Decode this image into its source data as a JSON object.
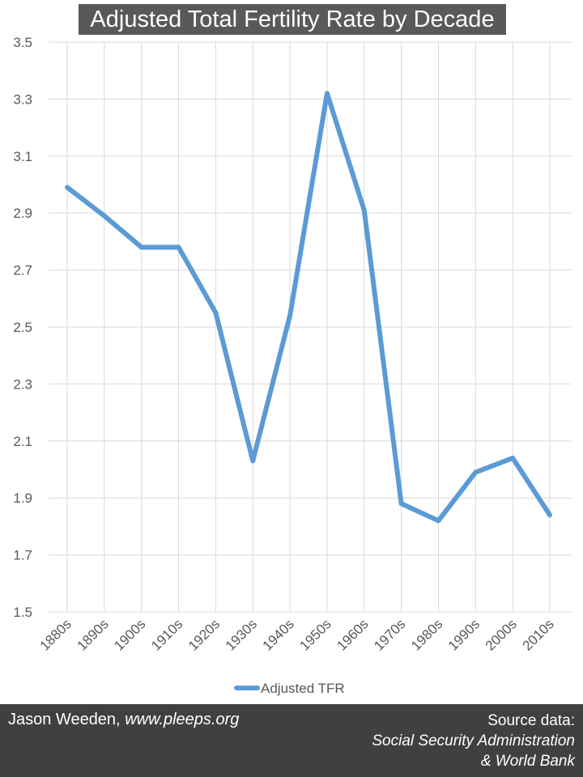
{
  "chart_data": {
    "type": "line",
    "title": "Adjusted Total Fertility Rate by Decade",
    "xlabel": "",
    "ylabel": "",
    "categories": [
      "1880s",
      "1890s",
      "1900s",
      "1910s",
      "1920s",
      "1930s",
      "1940s",
      "1950s",
      "1960s",
      "1970s",
      "1980s",
      "1990s",
      "2000s",
      "2010s"
    ],
    "series": [
      {
        "name": "Adjusted TFR",
        "values": [
          2.99,
          2.89,
          2.78,
          2.78,
          2.55,
          2.03,
          2.54,
          3.32,
          2.91,
          1.88,
          1.82,
          1.99,
          2.04,
          1.84
        ],
        "color": "#5B9BD5"
      }
    ],
    "ylim": [
      1.5,
      3.5
    ],
    "yticks": [
      "1.5",
      "1.7",
      "1.9",
      "2.1",
      "2.3",
      "2.5",
      "2.7",
      "2.9",
      "3.1",
      "3.3",
      "3.5"
    ],
    "grid": true,
    "legend_position": "bottom"
  },
  "footer": {
    "author": "Jason Weeden,",
    "site": "www.pleeps.org",
    "source_label": "Source data:",
    "source_line1": "Social Security Administration",
    "source_line2": "& World Bank"
  }
}
